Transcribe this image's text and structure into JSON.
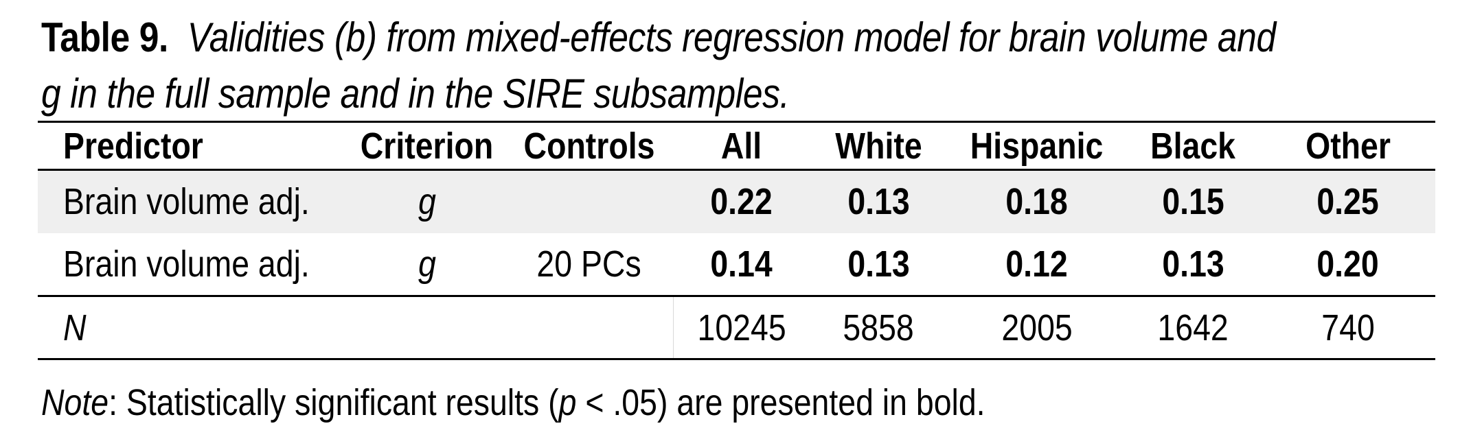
{
  "caption": {
    "label": "Table 9.",
    "text_line1": "Validities (b) from mixed-effects regression model for brain volume and",
    "text_line2": "g in the full sample and in the SIRE subsamples."
  },
  "table": {
    "headers": [
      "Predictor",
      "Criterion",
      "Controls",
      "All",
      "White",
      "Hispanic",
      "Black",
      "Other"
    ],
    "rows": [
      {
        "predictor": "Brain volume adj.",
        "criterion": "g",
        "controls": "",
        "values": [
          "0.22",
          "0.13",
          "0.18",
          "0.15",
          "0.25"
        ]
      },
      {
        "predictor": "Brain volume adj.",
        "criterion": "g",
        "controls": "20 PCs",
        "values": [
          "0.14",
          "0.13",
          "0.12",
          "0.13",
          "0.20"
        ]
      }
    ],
    "n_row": {
      "label": "N",
      "values": [
        "10245",
        "5858",
        "2005",
        "1642",
        "740"
      ]
    }
  },
  "note": {
    "label": "Note",
    "text_before": ": Statistically significant results (",
    "p_symbol": "p",
    "text_after": " < .05) are presented in bold."
  }
}
